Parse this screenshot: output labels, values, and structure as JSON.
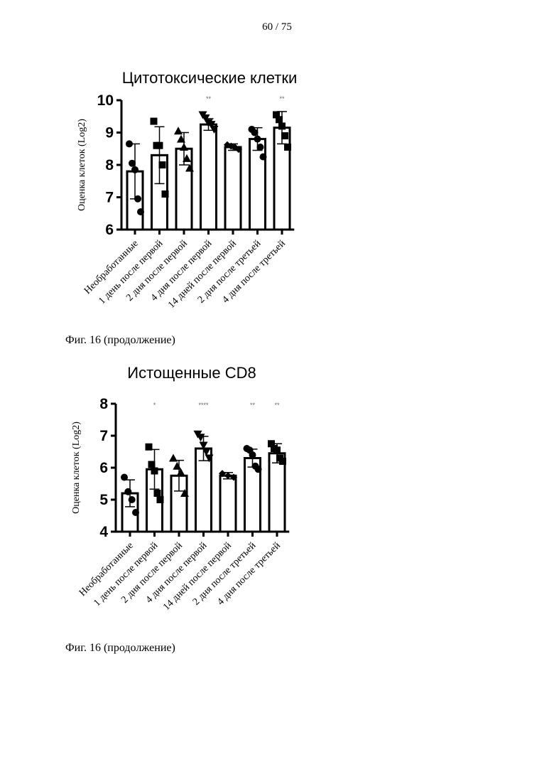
{
  "page": {
    "number": "60 / 75"
  },
  "captions": [
    "Фиг. 16 (продолжение)",
    "Фиг. 16 (продолжение)"
  ],
  "chart_data": [
    {
      "type": "bar",
      "title": "Цитотоксические клетки",
      "xlabel": "",
      "ylabel": "Оценка клеток (Log2)",
      "ylim": [
        6,
        10
      ],
      "yticks": [
        "6",
        "7",
        "8",
        "9",
        "10"
      ],
      "grid": false,
      "error_bars": true,
      "categories": [
        "Необработанные",
        "1 день после первой",
        "2 дня после первой",
        "4 дня после первой",
        "14 дней после первой",
        "2 дня после третьей",
        "4 дня после третьей"
      ],
      "values": [
        7.8,
        8.3,
        8.5,
        9.25,
        8.55,
        8.8,
        9.15
      ],
      "error": [
        0.85,
        0.88,
        0.5,
        0.18,
        0.1,
        0.35,
        0.5
      ],
      "markers": [
        "circle",
        "square",
        "triangle-up",
        "triangle-down",
        "diamond",
        "circle",
        "square"
      ],
      "points": [
        [
          8.65,
          8.05,
          7.85,
          6.95,
          6.55
        ],
        [
          9.35,
          8.6,
          8.6,
          8.0,
          7.1
        ],
        [
          9.05,
          8.8,
          8.55,
          8.2,
          7.9
        ],
        [
          9.55,
          9.45,
          9.3,
          9.25,
          9.1
        ],
        [
          8.62,
          8.58,
          8.55,
          8.48
        ],
        [
          9.1,
          9.0,
          8.8,
          8.55,
          8.25
        ],
        [
          9.55,
          9.4,
          9.2,
          8.9,
          8.55
        ]
      ],
      "significance": [
        "",
        "",
        "",
        "**",
        "",
        "",
        "**"
      ]
    },
    {
      "type": "bar",
      "title": "Истощенные CD8",
      "xlabel": "",
      "ylabel": "Оценка клеток (Log2)",
      "ylim": [
        4,
        8
      ],
      "yticks": [
        "4",
        "5",
        "6",
        "7",
        "8"
      ],
      "grid": false,
      "error_bars": true,
      "categories": [
        "Необработанные",
        "1 день после первой",
        "2 дня после первой",
        "4 дня после первой",
        "14 дней после первой",
        "2 дня после третьей",
        "4 дня после третьей"
      ],
      "values": [
        5.2,
        5.95,
        5.75,
        6.6,
        5.75,
        6.3,
        6.45
      ],
      "error": [
        0.42,
        0.62,
        0.48,
        0.38,
        0.1,
        0.28,
        0.3
      ],
      "markers": [
        "circle",
        "square",
        "triangle-up",
        "triangle-down",
        "diamond",
        "circle",
        "square"
      ],
      "points": [
        [
          5.7,
          5.25,
          5.0,
          4.6
        ],
        [
          6.65,
          6.1,
          5.9,
          5.2,
          5.0
        ],
        [
          6.3,
          6.05,
          5.85,
          5.2
        ],
        [
          7.05,
          6.95,
          6.7,
          6.5,
          6.3
        ],
        [
          5.82,
          5.75,
          5.7
        ],
        [
          6.6,
          6.55,
          6.4,
          6.05,
          5.95
        ],
        [
          6.75,
          6.6,
          6.55,
          6.3,
          6.2
        ]
      ],
      "significance": [
        "",
        "*",
        "",
        "****",
        "",
        "**",
        "**"
      ]
    }
  ]
}
